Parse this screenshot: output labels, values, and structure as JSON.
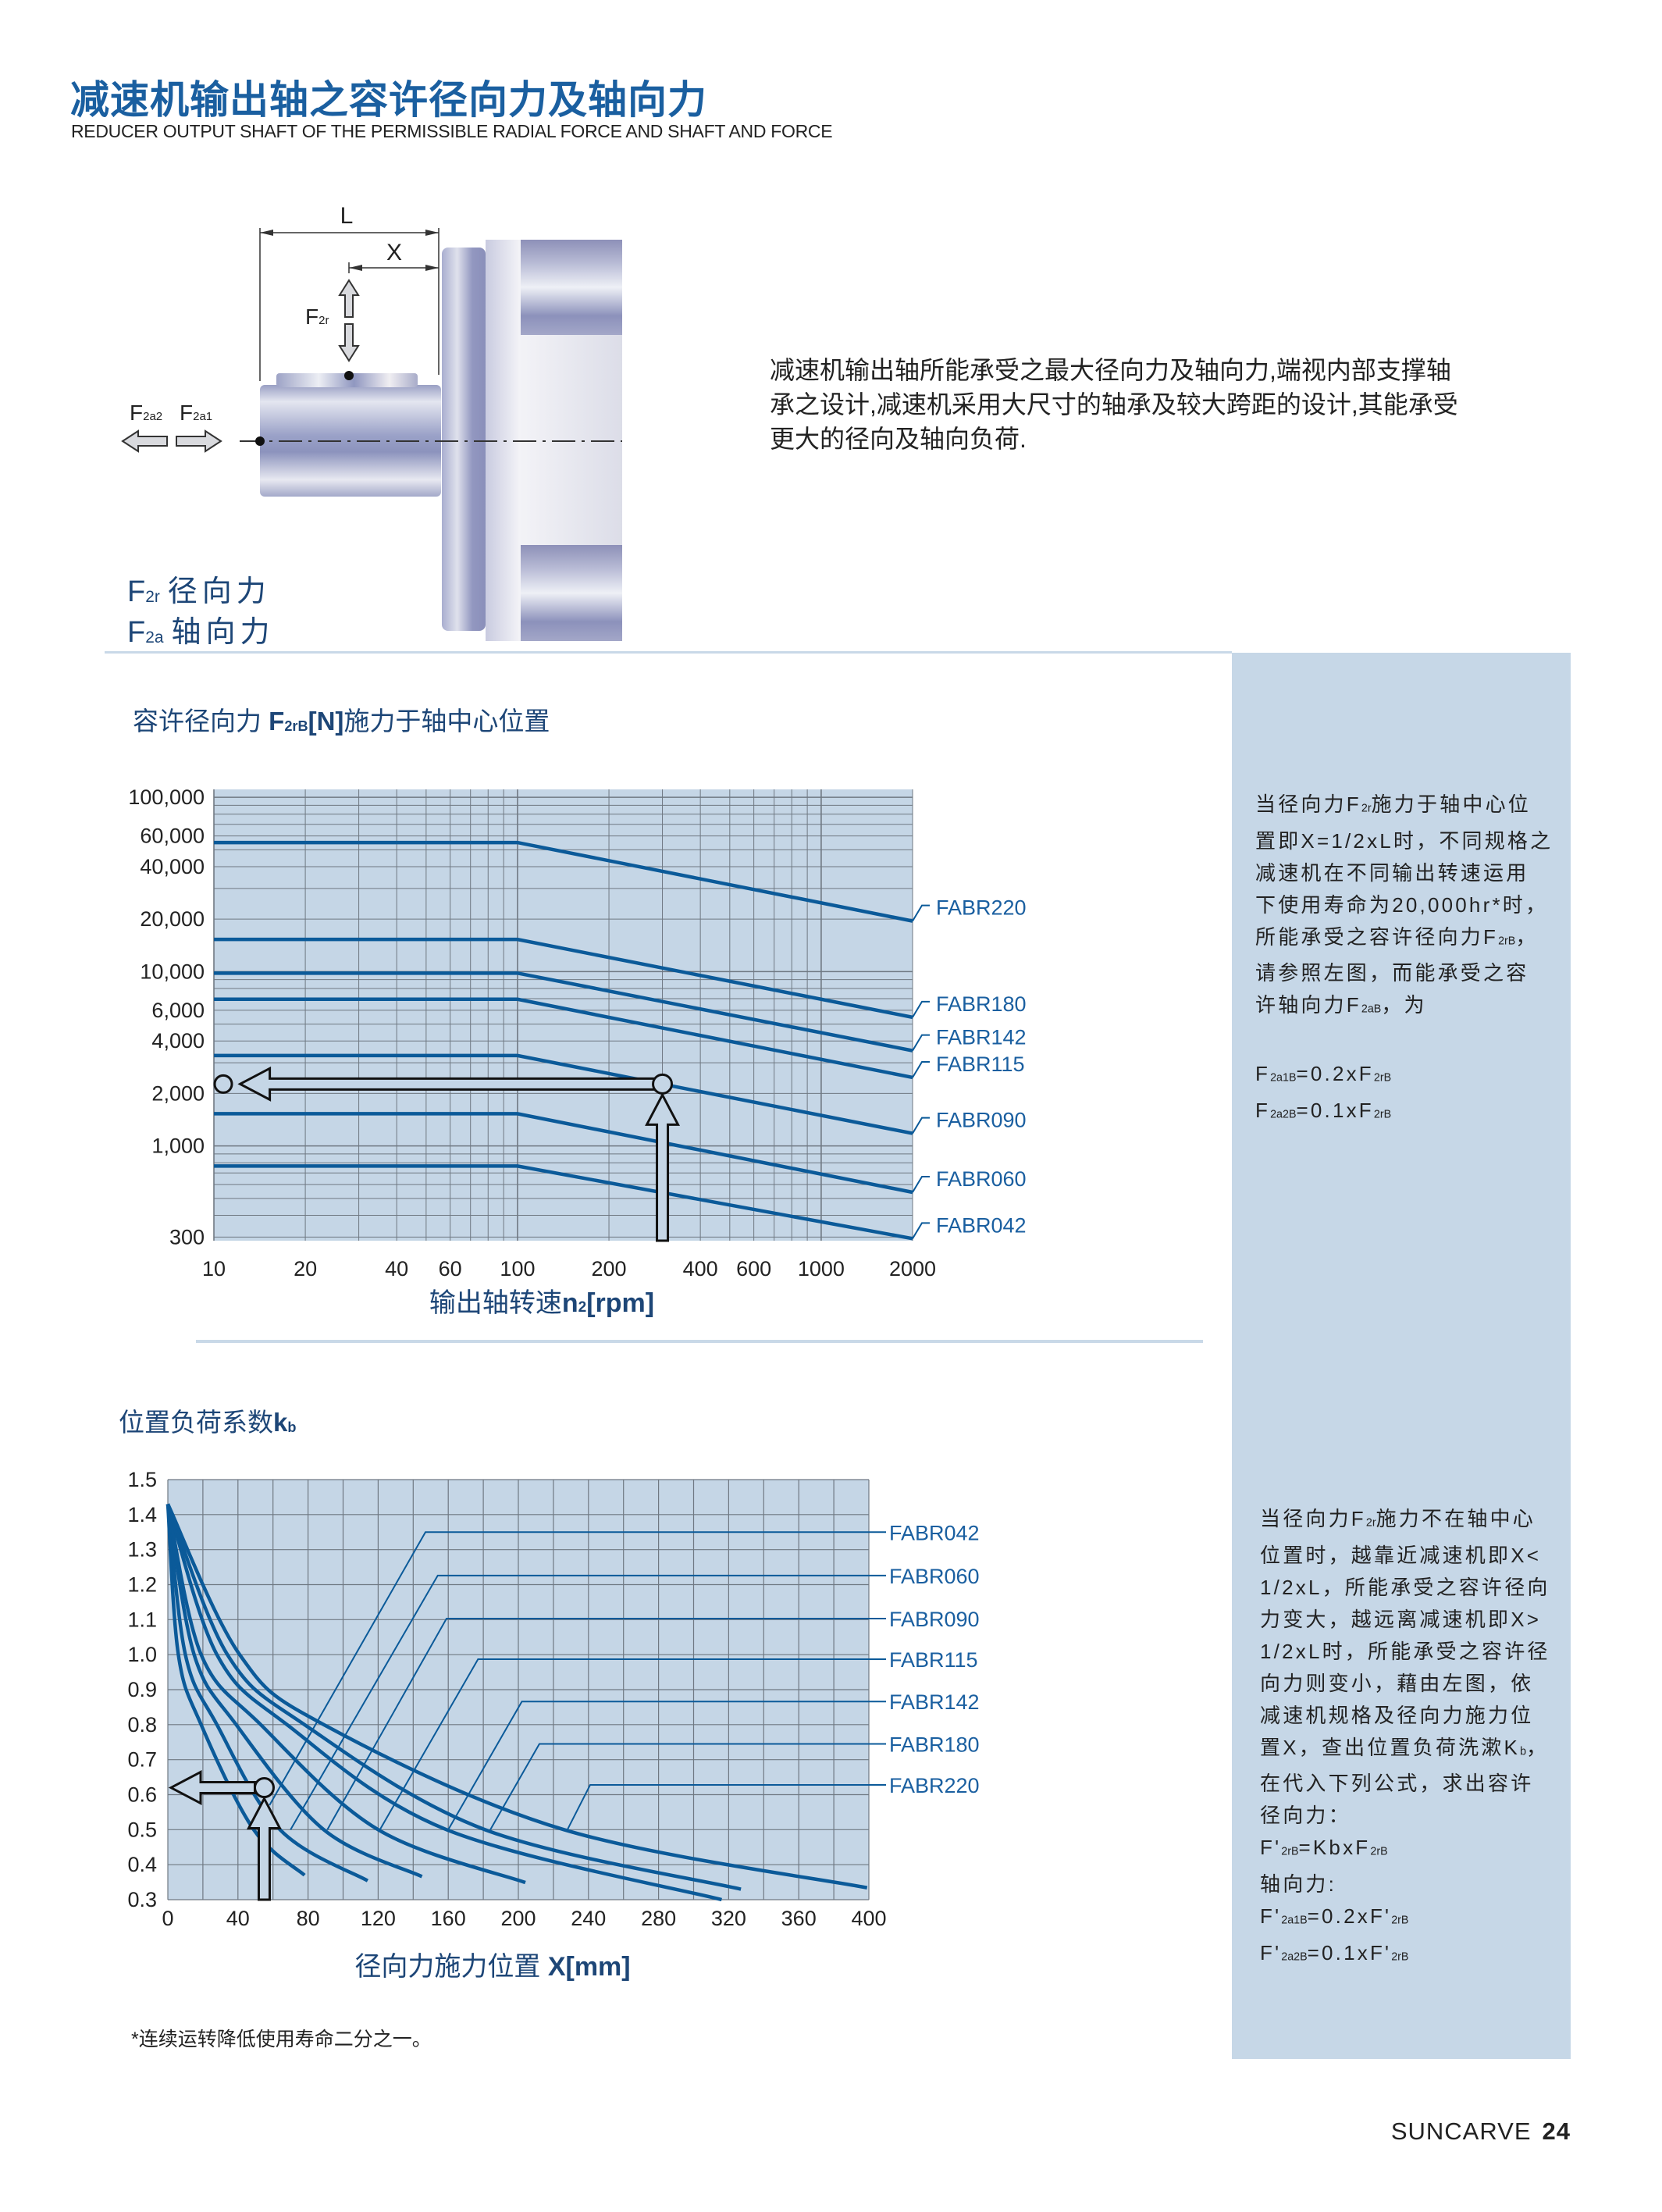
{
  "header": {
    "title": "减速机输出轴之容许径向力及轴向力",
    "subtitle": "REDUCER OUTPUT SHAFT OF THE PERMISSIBLE RADIAL FORCE AND SHAFT AND FORCE"
  },
  "diagram": {
    "L_label": "L",
    "X_label": "X",
    "F2r": [
      "F",
      "2r"
    ],
    "F2a2": [
      "F",
      "2a2"
    ],
    "F2a1": [
      "F",
      "2a1"
    ],
    "legend": [
      {
        "sym": [
          "F",
          "2r"
        ],
        "text": "径向力"
      },
      {
        "sym": [
          "F",
          "2a"
        ],
        "text": "轴向力"
      }
    ]
  },
  "description": [
    "减速机输出轴所能承受之最大径向力及轴向力,端视内部支撑轴",
    "承之设计,减速机采用大尺寸的轴承及较大跨距的设计,其能承受",
    "更大的径向及轴向负荷."
  ],
  "panel1": {
    "lines": [
      [
        "当径向力F",
        "2r",
        "施力于轴中心位"
      ],
      [
        "置即X=1/2xL时，不同规格之"
      ],
      [
        "减速机在不同输出转速运用"
      ],
      [
        "下使用寿命为20,000hr*时，"
      ],
      [
        "所能承受之容许径向力F",
        "2rB",
        "，"
      ],
      [
        "请参照左图，而能承受之容"
      ],
      [
        "许轴向力F",
        "2aB",
        "，为"
      ],
      [
        ""
      ],
      [
        "F",
        "2a1B",
        "=0.2xF",
        "2rB"
      ],
      [
        "F",
        "2a2B",
        "=0.1xF",
        "2rB"
      ]
    ]
  },
  "panel2": {
    "lines": [
      [
        "当径向力F",
        "2r",
        "施力不在轴中心"
      ],
      [
        "位置时，越靠近减速机即X<"
      ],
      [
        "1/2xL，所能承受之容许径向"
      ],
      [
        "力变大，越远离减速机即X>"
      ],
      [
        "1/2xL时，所能承受之容许径"
      ],
      [
        "向力则变小，藉由左图，依"
      ],
      [
        "减速机规格及径向力施力位"
      ],
      [
        "置X，查出位置负荷洗漱K",
        "b",
        "，"
      ],
      [
        "在代入下列公式，求出容许"
      ],
      [
        "径向力："
      ],
      [
        "F'",
        "2rB",
        "=KbxF",
        "2rB"
      ],
      [
        "轴向力:"
      ],
      [
        "F'",
        "2a1B",
        "=0.2xF'",
        "2rB"
      ],
      [
        "F'",
        "2a2B",
        "=0.1xF'",
        "2rB"
      ]
    ]
  },
  "footnote": "*连续运转降低使用寿命二分之一。",
  "footer": {
    "brand": "SUNCARVE",
    "page": "24"
  },
  "colors": {
    "accent": "#1a5fa0",
    "title_dark": "#1d4677",
    "plot_bg": "#c5d6e6",
    "grid": "#6f7882",
    "series": "#0b5a99",
    "panel_bg": "#c6d7e7"
  },
  "chart_data": [
    {
      "type": "line",
      "title": [
        "容许径向力 ",
        "F",
        "2rB",
        "[N]",
        "施力于轴中心位置"
      ],
      "xlabel": [
        "输出轴转速",
        "n",
        "2",
        "[rpm]"
      ],
      "x_scale": "log",
      "y_scale": "log",
      "xlim": [
        10,
        2000
      ],
      "ylim": [
        286,
        111000
      ],
      "grid": true,
      "legend": "right-end labels",
      "x_ticks": [
        10,
        20,
        40,
        60,
        100,
        200,
        400,
        600,
        1000,
        2000
      ],
      "x_tick_labels": [
        "10",
        "20",
        "40",
        "60",
        "100",
        "200",
        "400",
        "600",
        "1000",
        "2000"
      ],
      "y_ticks": [
        100000,
        60000,
        40000,
        20000,
        10000,
        6000,
        4000,
        2000,
        1000,
        300
      ],
      "y_tick_labels": [
        "100,000",
        "60,000",
        "40,000",
        "20,000",
        "10,000",
        "6,000",
        "4,000",
        "2,000",
        "1,000",
        "300"
      ],
      "series": [
        {
          "name": "FABR220",
          "x": [
            10,
            100,
            2000
          ],
          "y": [
            55000,
            55000,
            19500
          ]
        },
        {
          "name": "FABR180",
          "x": [
            10,
            100,
            2000
          ],
          "y": [
            15300,
            15300,
            5470
          ]
        },
        {
          "name": "FABR142",
          "x": [
            10,
            100,
            2000
          ],
          "y": [
            9800,
            9800,
            3520
          ]
        },
        {
          "name": "FABR115",
          "x": [
            10,
            100,
            2000
          ],
          "y": [
            6940,
            6940,
            2470
          ]
        },
        {
          "name": "FABR090",
          "x": [
            10,
            100,
            2000
          ],
          "y": [
            3300,
            3300,
            1180
          ]
        },
        {
          "name": "FABR060",
          "x": [
            10,
            100,
            2000
          ],
          "y": [
            1530,
            1530,
            542
          ]
        },
        {
          "name": "FABR042",
          "x": [
            10,
            100,
            2000
          ],
          "y": [
            767,
            767,
            294
          ]
        }
      ],
      "example_lookup": {
        "x": 300,
        "y": 2265,
        "series": "FABR090"
      }
    },
    {
      "type": "line",
      "title": [
        "位置负荷系数",
        "k",
        "b"
      ],
      "xlabel": [
        "径向力施力位置 ",
        "X[mm]"
      ],
      "xlim": [
        0,
        400
      ],
      "ylim": [
        0.3,
        1.5
      ],
      "grid": true,
      "legend": "right labels with leader lines",
      "x_ticks": [
        0,
        40,
        80,
        120,
        160,
        200,
        240,
        280,
        320,
        360,
        400
      ],
      "x_tick_labels": [
        "0",
        "40",
        "80",
        "120",
        "160",
        "200",
        "240",
        "280",
        "320",
        "360",
        "400"
      ],
      "y_ticks": [
        1.5,
        1.4,
        1.3,
        1.2,
        1.1,
        1.0,
        0.9,
        0.8,
        0.7,
        0.6,
        0.5,
        0.4,
        0.3
      ],
      "y_tick_labels": [
        "1.5",
        "1.4",
        "1.3",
        "1.2",
        "1.1",
        "1.0",
        "0.9",
        "0.8",
        "0.7",
        "0.6",
        "0.5",
        "0.4",
        "0.3"
      ],
      "series": [
        {
          "name": "FABR042",
          "x": [
            0,
            6,
            19,
            49,
            78
          ],
          "y": [
            1.43,
            1.0,
            0.8,
            0.5,
            0.37
          ],
          "label_y": 1.35,
          "leader_bend_x": 147,
          "leader_end": [
            58,
            0.57
          ]
        },
        {
          "name": "FABR060",
          "x": [
            0,
            10,
            28,
            64,
            114
          ],
          "y": [
            1.43,
            1.0,
            0.8,
            0.5,
            0.354
          ],
          "label_y": 1.226,
          "leader_bend_x": 154,
          "leader_end": [
            70,
            0.5
          ]
        },
        {
          "name": "FABR090",
          "x": [
            0,
            15,
            39,
            89,
            145
          ],
          "y": [
            1.43,
            1.0,
            0.8,
            0.5,
            0.366
          ],
          "label_y": 1.103,
          "leader_bend_x": 159,
          "leader_end": [
            91,
            0.5
          ]
        },
        {
          "name": "FABR115",
          "x": [
            0,
            19,
            53,
            120,
            204
          ],
          "y": [
            1.43,
            1.0,
            0.8,
            0.5,
            0.349
          ],
          "label_y": 0.987,
          "leader_bend_x": 177,
          "leader_end": [
            121,
            0.5
          ]
        },
        {
          "name": "FABR142",
          "x": [
            0,
            28,
            68,
            159,
            316
          ],
          "y": [
            1.43,
            1.0,
            0.8,
            0.5,
            0.3
          ],
          "label_y": 0.866,
          "leader_bend_x": 202,
          "leader_end": [
            160,
            0.5
          ]
        },
        {
          "name": "FABR180",
          "x": [
            0,
            34,
            78,
            181,
            327
          ],
          "y": [
            1.43,
            1.0,
            0.8,
            0.5,
            0.33
          ],
          "label_y": 0.745,
          "leader_bend_x": 212,
          "leader_end": [
            184,
            0.5
          ]
        },
        {
          "name": "FABR220",
          "x": [
            0,
            41,
            89,
            226,
            399
          ],
          "y": [
            1.43,
            1.0,
            0.8,
            0.5,
            0.334
          ],
          "label_y": 0.628,
          "leader_bend_x": 241,
          "leader_end": [
            228,
            0.5
          ]
        }
      ],
      "example_lookup": {
        "x": 55,
        "y": 0.62
      }
    }
  ]
}
